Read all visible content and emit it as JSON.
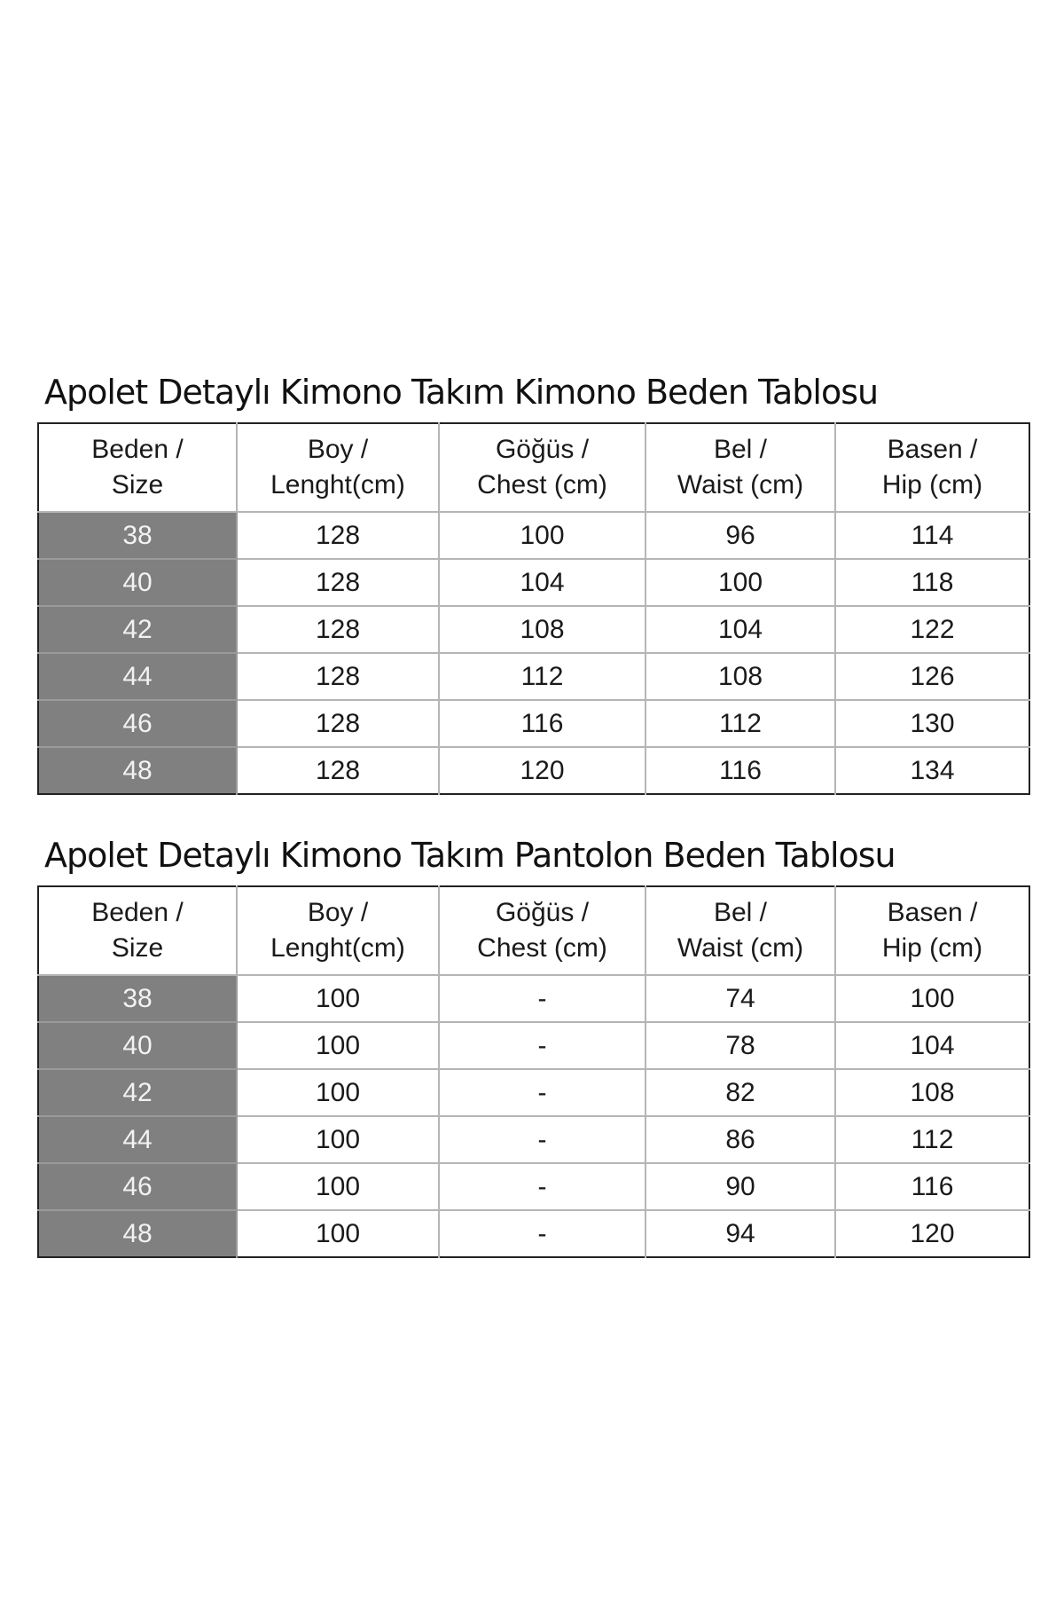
{
  "tables": [
    {
      "title": "Apolet Detaylı Kimono Takım Kimono Beden Tablosu",
      "headers": [
        [
          "Beden /",
          "Size"
        ],
        [
          "Boy /",
          "Lenght(cm)"
        ],
        [
          "Göğüs /",
          "Chest (cm)"
        ],
        [
          "Bel /",
          "Waist (cm)"
        ],
        [
          "Basen /",
          "Hip (cm)"
        ]
      ],
      "rows": [
        [
          "38",
          "128",
          "100",
          "96",
          "114"
        ],
        [
          "40",
          "128",
          "104",
          "100",
          "118"
        ],
        [
          "42",
          "128",
          "108",
          "104",
          "122"
        ],
        [
          "44",
          "128",
          "112",
          "108",
          "126"
        ],
        [
          "46",
          "128",
          "116",
          "112",
          "130"
        ],
        [
          "48",
          "128",
          "120",
          "116",
          "134"
        ]
      ]
    },
    {
      "title": "Apolet Detaylı Kimono Takım Pantolon Beden Tablosu",
      "headers": [
        [
          "Beden /",
          "Size"
        ],
        [
          "Boy /",
          "Lenght(cm)"
        ],
        [
          "Göğüs /",
          "Chest (cm)"
        ],
        [
          "Bel /",
          "Waist (cm)"
        ],
        [
          "Basen /",
          "Hip (cm)"
        ]
      ],
      "rows": [
        [
          "38",
          "100",
          "-",
          "74",
          "100"
        ],
        [
          "40",
          "100",
          "-",
          "78",
          "104"
        ],
        [
          "42",
          "100",
          "-",
          "82",
          "108"
        ],
        [
          "44",
          "100",
          "-",
          "86",
          "112"
        ],
        [
          "46",
          "100",
          "-",
          "90",
          "116"
        ],
        [
          "48",
          "100",
          "-",
          "94",
          "120"
        ]
      ]
    }
  ],
  "colors": {
    "size_cell_bg": "#808080",
    "border": "#222222"
  }
}
